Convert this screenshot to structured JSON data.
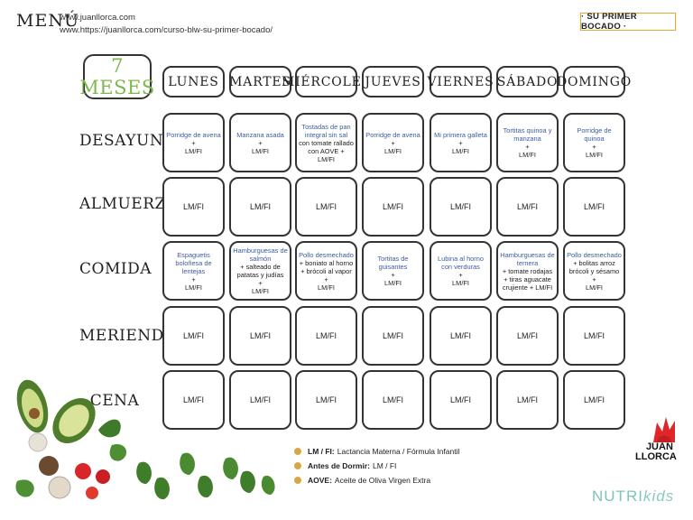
{
  "header": {
    "title": "MENÚ",
    "url1": "www.juanllorca.com",
    "url2": "www.https://juanllorca.com/curso-blw-su-primer-bocado/",
    "badge": "· SU PRIMER BOCADO ·"
  },
  "month": "7 MESES",
  "days": [
    "LUNES",
    "MARTES",
    "MIÉRCOLES",
    "JUEVES",
    "VIERNES",
    "SÁBADO",
    "DOMINGO"
  ],
  "meals": [
    "DESAYUNO",
    "ALMUERZO",
    "COMIDA",
    "MERIENDA",
    "CENA"
  ],
  "plus": "+",
  "lmfi": "LM/FI",
  "desayuno": [
    {
      "dish": "Porridge de avena",
      "lm": "LM/FI"
    },
    {
      "dish": "Manzana asada",
      "lm": "LM/FI"
    },
    {
      "dish": "Tostadas de pan integral sin sal",
      "side": "con tomate rallado con AOVE +",
      "lm": "LM/FI"
    },
    {
      "dish": "Porridge de avena",
      "lm": "LM/FI"
    },
    {
      "dish": "Mi primera galleta",
      "lm": "LM/FI"
    },
    {
      "dish": "Tortitas quinoa y manzana",
      "lm": "LM/FI"
    },
    {
      "dish": "Porridge de quinoa",
      "lm": "LM/FI"
    }
  ],
  "comida": [
    {
      "dish": "Espaguetis boloñesa de lentejas",
      "lm": "LM/FI"
    },
    {
      "dish": "Hamburguesas de salmón",
      "side": "+ salteado de patatas y judías",
      "lm": "LM/FI"
    },
    {
      "dish": "Pollo desmechado",
      "side": "+ boniato al horno + brócoli al vapor",
      "lm": "LM/FI"
    },
    {
      "dish": "Tortitas de guisantes",
      "lm": "LM/FI"
    },
    {
      "dish": "Lubina al horno con verduras",
      "lm": "LM/FI"
    },
    {
      "dish": "Hamburguesas de ternera",
      "side": "+ tomate rodajas + tiras aguacate crujiente + LM/FI",
      "lm": ""
    },
    {
      "dish": "Pollo desmechado",
      "side": "+ bolitas arroz brócoli y sésamo",
      "lm": "LM/FI"
    }
  ],
  "legend": [
    {
      "key": "LM / FI:",
      "text": "Lactancia Materna / Fórmula Infantil"
    },
    {
      "key": "Antes de Dormir:",
      "text": "LM / FI"
    },
    {
      "key": "AOVE:",
      "text": "Aceite de Oliva Virgen Extra"
    }
  ],
  "brand": {
    "line1": "JUAN",
    "line2": "LLORCA",
    "nutri": "NUTRI",
    "kids": "kids"
  },
  "colors": {
    "accent_gold": "#e3a72f",
    "dish_blue": "#3d5c9e",
    "month_green": "#7db84a",
    "nutri_teal": "#7fc4b9"
  }
}
